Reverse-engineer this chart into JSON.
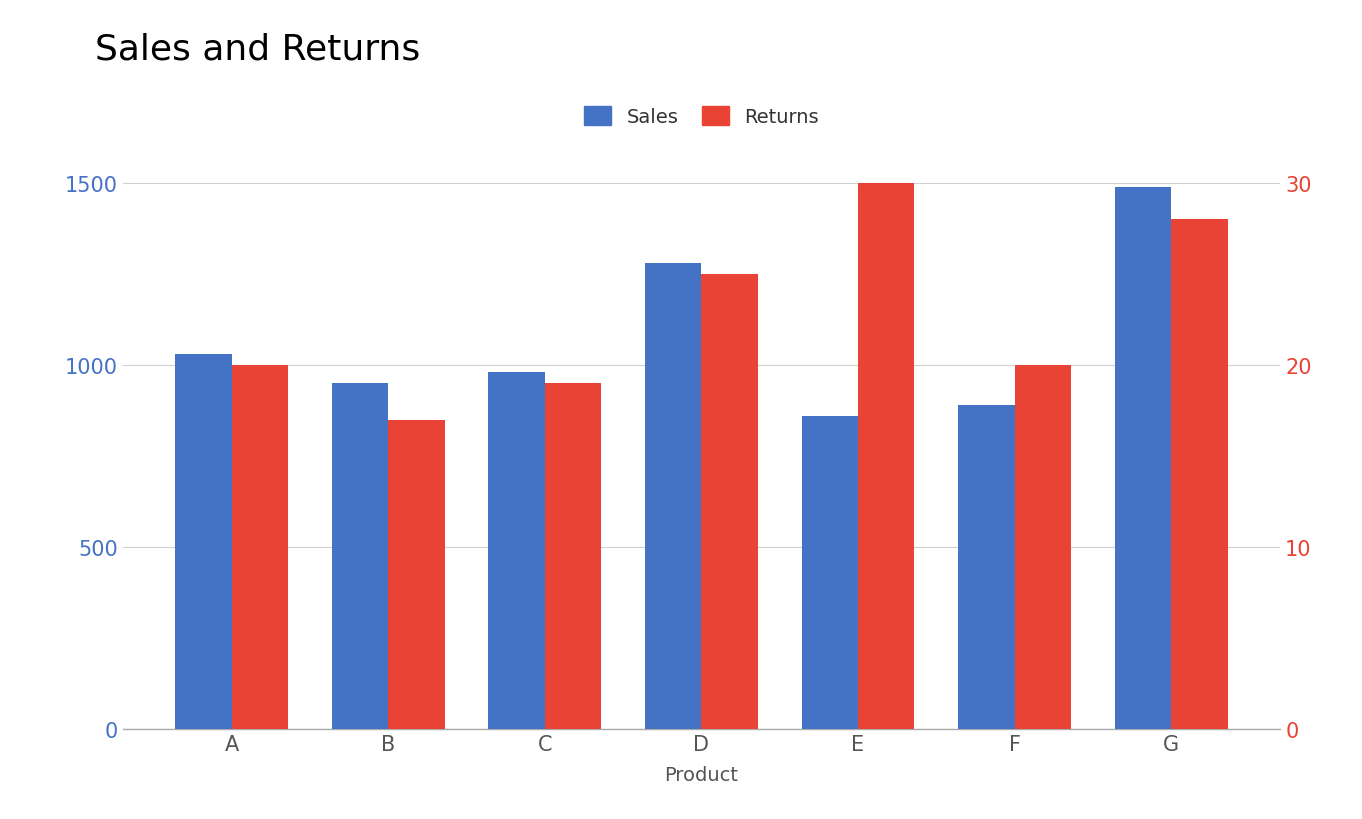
{
  "categories": [
    "A",
    "B",
    "C",
    "D",
    "E",
    "F",
    "G"
  ],
  "sales": [
    1030,
    950,
    980,
    1280,
    860,
    890,
    1490
  ],
  "returns": [
    20,
    17,
    19,
    25,
    30,
    20,
    28
  ],
  "sales_color": "#4472C4",
  "returns_color": "#E84335",
  "left_axis_color": "#4472C4",
  "right_axis_color": "#E84335",
  "title": "Sales and Returns",
  "xlabel": "Product",
  "left_ylim": [
    0,
    1600
  ],
  "right_ylim": [
    0,
    32
  ],
  "left_yticks": [
    0,
    500,
    1000,
    1500
  ],
  "right_yticks": [
    0,
    10,
    20,
    30
  ],
  "title_fontsize": 26,
  "label_fontsize": 14,
  "tick_fontsize": 15,
  "legend_fontsize": 14,
  "bar_width": 0.36,
  "background_color": "#ffffff",
  "grid_color": "#d0d0d0"
}
